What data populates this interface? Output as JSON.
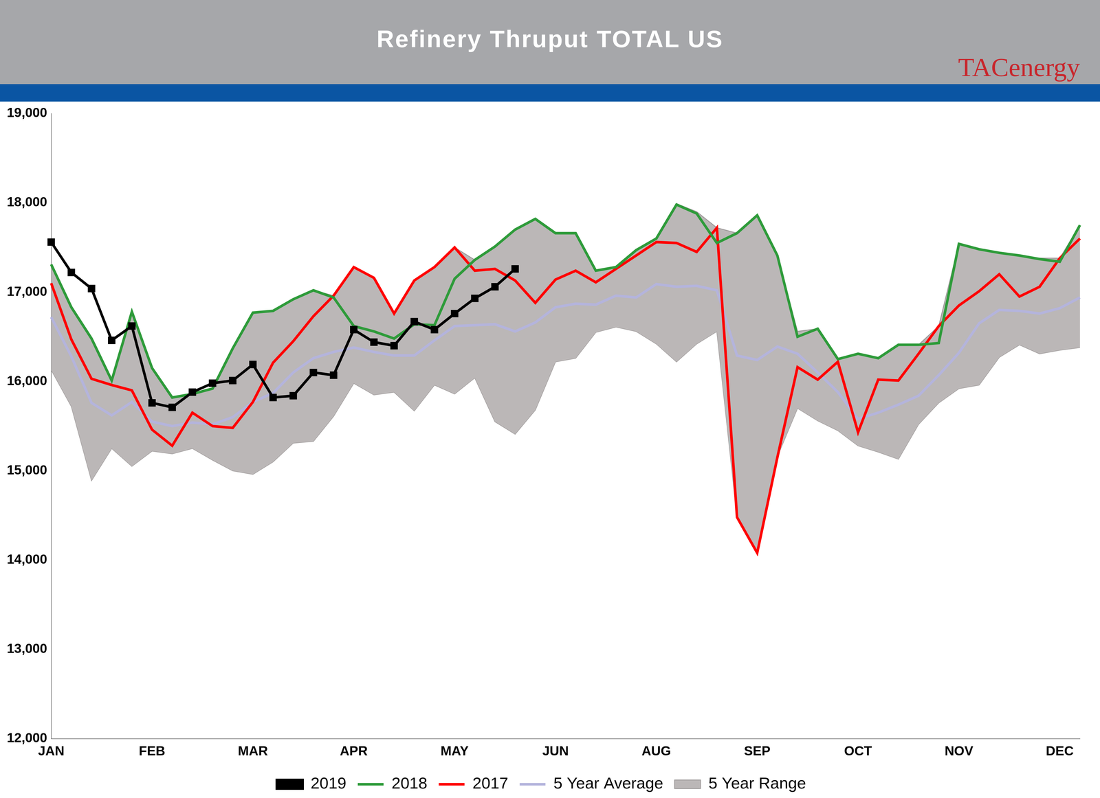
{
  "chart_data": {
    "type": "line",
    "title": "Refinery Thruput TOTAL US",
    "logo": "TACenergy",
    "categories": [
      "JAN",
      null,
      null,
      null,
      null,
      "FEB",
      null,
      null,
      null,
      null,
      "MAR",
      null,
      null,
      null,
      null,
      "APR",
      null,
      null,
      null,
      null,
      "MAY",
      null,
      null,
      null,
      null,
      "JUN",
      null,
      null,
      null,
      null,
      "AUG",
      null,
      null,
      null,
      null,
      "SEP",
      null,
      null,
      null,
      null,
      "OCT",
      null,
      null,
      null,
      null,
      "NOV",
      null,
      null,
      null,
      null,
      "DEC",
      null
    ],
    "ylim": [
      12000,
      19000
    ],
    "yticks": [
      {
        "value": 12000,
        "label": "12,000"
      },
      {
        "value": 13000,
        "label": "13,000"
      },
      {
        "value": 14000,
        "label": "14,000"
      },
      {
        "value": 15000,
        "label": "15,000"
      },
      {
        "value": 16000,
        "label": "16,000"
      },
      {
        "value": 17000,
        "label": "17,000"
      },
      {
        "value": 18000,
        "label": "18,000"
      },
      {
        "value": 19000,
        "label": "19,000"
      }
    ],
    "grid": false,
    "legend": "bottom",
    "series": [
      {
        "name": "5 Year Range",
        "type": "area",
        "color": "#bbb7b7",
        "low": [
          16130,
          15720,
          14890,
          15250,
          15050,
          15220,
          15190,
          15250,
          15120,
          15000,
          14960,
          15100,
          15310,
          15330,
          15610,
          15980,
          15850,
          15880,
          15670,
          15960,
          15860,
          16040,
          15550,
          15410,
          15680,
          16220,
          16260,
          16550,
          16610,
          16560,
          16420,
          16220,
          16420,
          16560,
          14480,
          14080,
          15160,
          15700,
          15560,
          15450,
          15280,
          15210,
          15130,
          15520,
          15760,
          15920,
          15960,
          16270,
          16410,
          16310,
          16350,
          16380
        ],
        "high": [
          17310,
          16830,
          16480,
          16010,
          16780,
          16150,
          15820,
          15860,
          15920,
          16370,
          16770,
          16790,
          16920,
          17020,
          16960,
          17280,
          17160,
          16760,
          17130,
          17280,
          17500,
          17360,
          17510,
          17700,
          17820,
          17660,
          17660,
          17240,
          17280,
          17470,
          17600,
          17990,
          17900,
          17720,
          17660,
          17860,
          17410,
          16560,
          16590,
          16250,
          16310,
          16260,
          16410,
          16410,
          16620,
          17540,
          17480,
          17440,
          17410,
          17380,
          17380,
          17750
        ]
      },
      {
        "name": "5 Year Average",
        "color": "#b4b4dc",
        "marker": "none",
        "line_style": "solid",
        "values": [
          16720,
          16280,
          15760,
          15620,
          15770,
          15550,
          15500,
          15540,
          15520,
          15600,
          15770,
          15870,
          16100,
          16260,
          16330,
          16380,
          16330,
          16290,
          16290,
          16460,
          16620,
          16630,
          16640,
          16560,
          16660,
          16830,
          16870,
          16860,
          16960,
          16940,
          17090,
          17060,
          17070,
          17020,
          16290,
          16240,
          16390,
          16310,
          16100,
          15880,
          15580,
          15650,
          15740,
          15840,
          16070,
          16320,
          16650,
          16800,
          16790,
          16760,
          16820,
          16940
        ]
      },
      {
        "name": "2017",
        "color": "#ff0000",
        "marker": "none",
        "line_style": "solid",
        "values": [
          17100,
          16470,
          16030,
          15960,
          15900,
          15460,
          15280,
          15650,
          15500,
          15480,
          15770,
          16210,
          16450,
          16730,
          16960,
          17280,
          17160,
          16760,
          17130,
          17280,
          17500,
          17240,
          17260,
          17130,
          16880,
          17140,
          17240,
          17110,
          17260,
          17410,
          17560,
          17550,
          17450,
          17720,
          14480,
          14080,
          15150,
          16160,
          16020,
          16220,
          15430,
          16020,
          16010,
          16310,
          16620,
          16850,
          17010,
          17200,
          16950,
          17060,
          17380,
          17600
        ]
      },
      {
        "name": "2018",
        "color": "#2e9b3a",
        "marker": "none",
        "line_style": "solid",
        "values": [
          17310,
          16830,
          16480,
          16010,
          16780,
          16150,
          15820,
          15860,
          15920,
          16370,
          16770,
          16790,
          16920,
          17020,
          16940,
          16620,
          16560,
          16480,
          16640,
          16630,
          17150,
          17360,
          17510,
          17700,
          17820,
          17660,
          17660,
          17240,
          17280,
          17470,
          17600,
          17980,
          17880,
          17550,
          17660,
          17860,
          17410,
          16500,
          16590,
          16250,
          16310,
          16260,
          16410,
          16410,
          16430,
          17540,
          17480,
          17440,
          17410,
          17370,
          17340,
          17750
        ]
      },
      {
        "name": "2019",
        "color": "#000000",
        "marker": "square",
        "line_style": "solid",
        "values": [
          17560,
          17220,
          17040,
          16460,
          16620,
          15760,
          15710,
          15880,
          15980,
          16010,
          16190,
          15820,
          15840,
          16100,
          16070,
          16580,
          16440,
          16400,
          16670,
          16580,
          16760,
          16930,
          17060,
          17260,
          null,
          null,
          null,
          null,
          null,
          null,
          null,
          null,
          null,
          null,
          null,
          null,
          null,
          null,
          null,
          null,
          null,
          null,
          null,
          null,
          null,
          null,
          null,
          null,
          null,
          null,
          null,
          null
        ]
      }
    ]
  }
}
